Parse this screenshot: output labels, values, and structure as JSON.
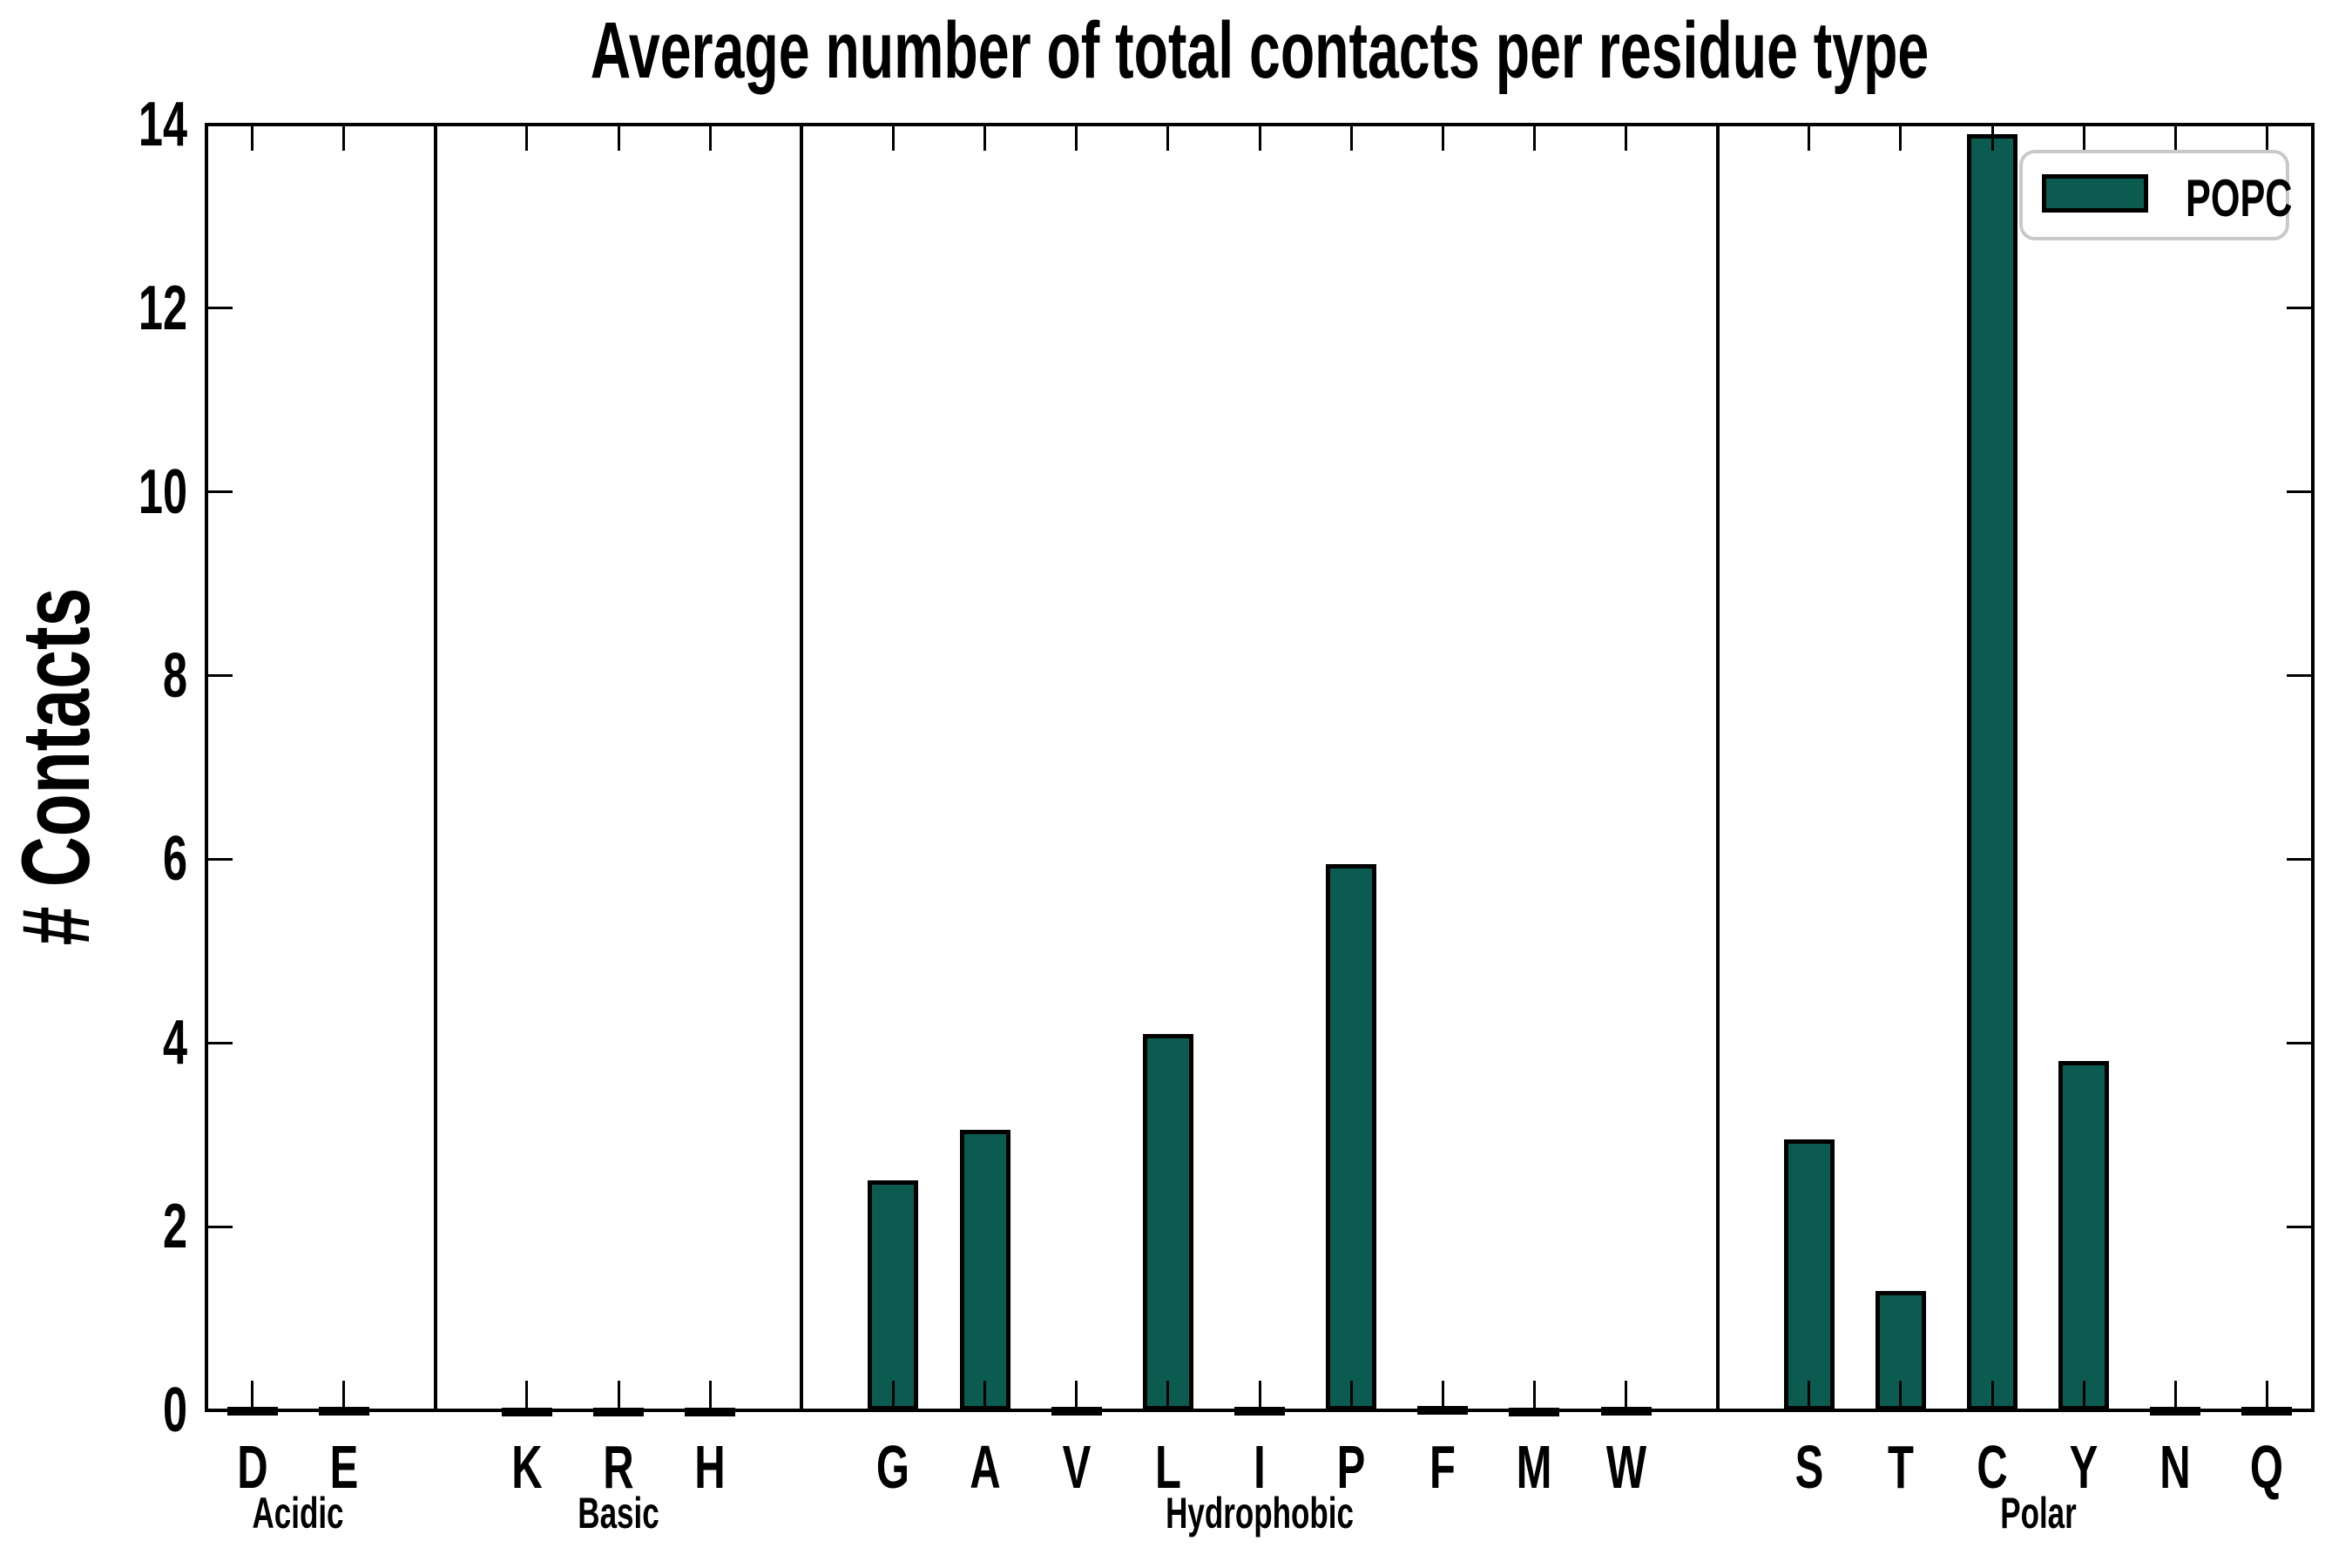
{
  "chart": {
    "title": "Average number of total contacts per residue type",
    "y_axis_title": "# Contacts",
    "legend_label": "POPC"
  },
  "colors": {
    "bar_fill": "#0b5b51",
    "bar_edge": "#000000",
    "axis": "#000000",
    "legend_border": "#c9c9c9",
    "background": "#ffffff"
  },
  "chart_data": {
    "type": "bar",
    "title": "Average number of total contacts per residue type",
    "xlabel": "",
    "ylabel": "# Contacts",
    "ylim": [
      0,
      14
    ],
    "yticks": [
      0,
      2,
      4,
      6,
      8,
      10,
      12,
      14
    ],
    "grid": false,
    "legend_position": "upper right",
    "series": [
      {
        "name": "POPC",
        "color": "#0b5b51",
        "groups": [
          {
            "label": "Acidic",
            "categories": [
              "D",
              "E"
            ],
            "values": [
              0.04,
              0.04
            ]
          },
          {
            "label": "Basic",
            "categories": [
              "K",
              "R",
              "H"
            ],
            "values": [
              0.03,
              0.03,
              0.03
            ]
          },
          {
            "label": "Hydrophobic",
            "categories": [
              "G",
              "A",
              "V",
              "L",
              "I",
              "P",
              "F",
              "M",
              "W"
            ],
            "values": [
              2.5,
              3.05,
              0.04,
              4.1,
              0.04,
              5.95,
              0.05,
              0.03,
              0.04
            ]
          },
          {
            "label": "Polar",
            "categories": [
              "S",
              "T",
              "C",
              "Y",
              "N",
              "Q"
            ],
            "values": [
              2.95,
              1.3,
              13.9,
              3.8,
              0.04,
              0.04
            ]
          }
        ]
      }
    ]
  }
}
